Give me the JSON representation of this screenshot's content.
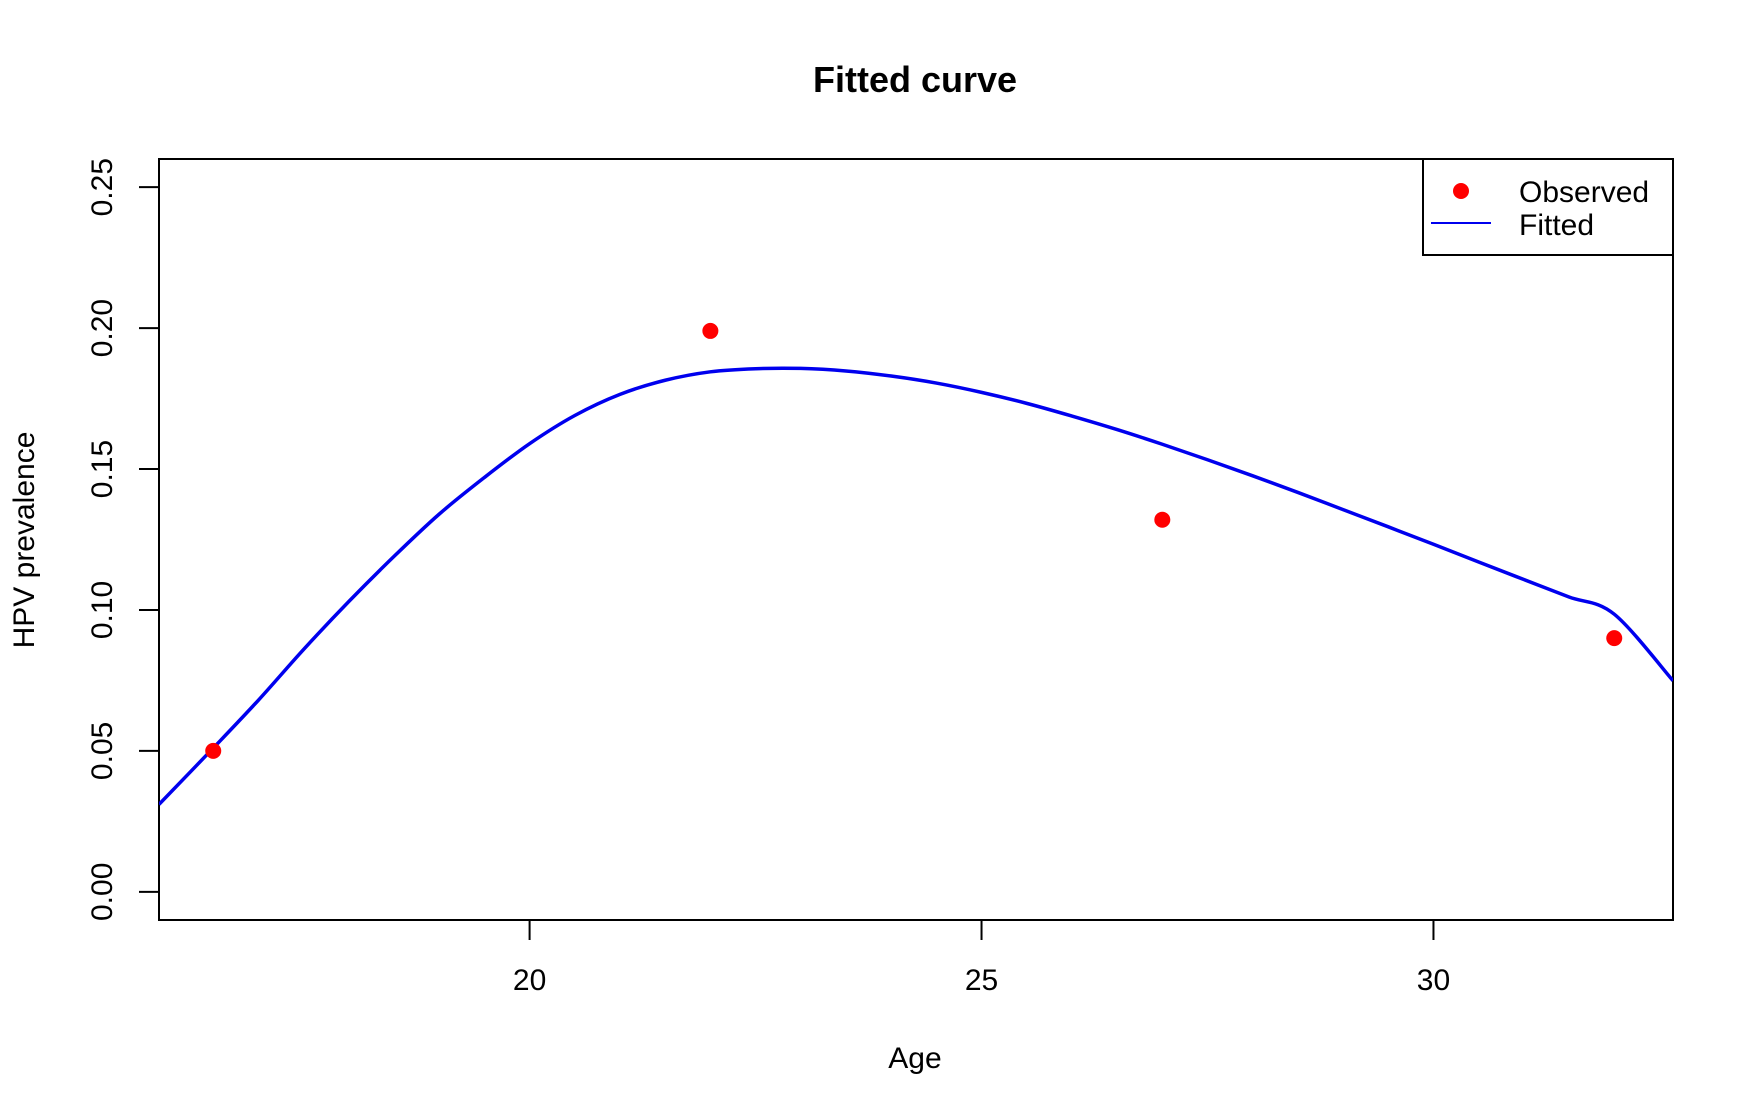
{
  "chart_data": {
    "type": "line",
    "title": "Fitted curve",
    "xlabel": "Age",
    "ylabel": "HPV prevalence",
    "xlim": [
      15.9,
      32.65
    ],
    "ylim": [
      -0.01,
      0.26
    ],
    "x_ticks": [
      20,
      25,
      30
    ],
    "x_tick_labels": [
      "20",
      "25",
      "30"
    ],
    "y_ticks": [
      0.0,
      0.05,
      0.1,
      0.15,
      0.2,
      0.25
    ],
    "y_tick_labels": [
      "0.00",
      "0.05",
      "0.10",
      "0.15",
      "0.20",
      "0.25"
    ],
    "grid": false,
    "legend_position": "top-right",
    "series": [
      {
        "name": "Observed",
        "kind": "scatter",
        "color": "#ff0000",
        "x": [
          16.5,
          22.0,
          27.0,
          32.0
        ],
        "y": [
          0.05,
          0.199,
          0.132,
          0.09
        ]
      },
      {
        "name": "Fitted",
        "kind": "line",
        "color": "#0000ee",
        "x": [
          15.9,
          16.5,
          17.0,
          17.5,
          18.0,
          18.5,
          19.0,
          19.5,
          20.0,
          20.5,
          21.0,
          21.5,
          22.0,
          22.5,
          23.0,
          23.5,
          24.0,
          24.5,
          25.0,
          25.5,
          26.0,
          26.5,
          27.0,
          27.5,
          28.0,
          28.5,
          29.0,
          29.5,
          30.0,
          30.5,
          31.0,
          31.5,
          32.0,
          32.65
        ],
        "y": [
          0.031,
          0.051,
          0.068,
          0.086,
          0.103,
          0.119,
          0.134,
          0.147,
          0.159,
          0.169,
          0.1765,
          0.1815,
          0.1845,
          0.1856,
          0.1857,
          0.1848,
          0.183,
          0.1805,
          0.1772,
          0.1733,
          0.1688,
          0.164,
          0.1588,
          0.1533,
          0.1476,
          0.1417,
          0.1356,
          0.1295,
          0.1233,
          0.117,
          0.1108,
          0.1046,
          0.0985,
          0.0749
        ]
      }
    ]
  }
}
